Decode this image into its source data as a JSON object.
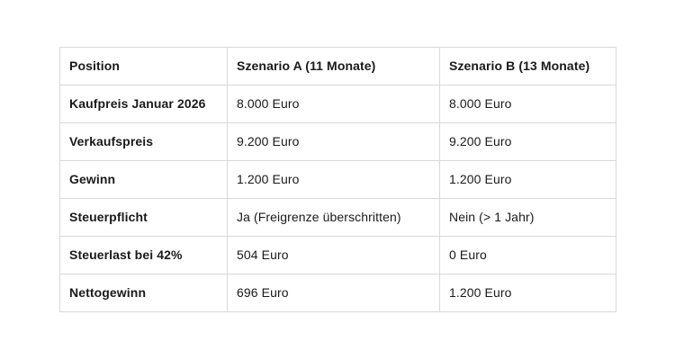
{
  "colors": {
    "background": "#ffffff",
    "border": "#d8d8d8",
    "text": "#1a1a1a"
  },
  "table": {
    "columns": [
      "Position",
      "Szenario A (11 Monate)",
      "Szenario B (13 Monate)"
    ],
    "rows": [
      [
        "Kaufpreis Januar 2026",
        "8.000 Euro",
        "8.000 Euro"
      ],
      [
        "Verkaufspreis",
        "9.200 Euro",
        "9.200 Euro"
      ],
      [
        "Gewinn",
        "1.200 Euro",
        "1.200 Euro"
      ],
      [
        "Steuerpflicht",
        "Ja (Freigrenze überschritten)",
        "Nein (> 1 Jahr)"
      ],
      [
        "Steuerlast bei 42%",
        "504 Euro",
        "0 Euro"
      ],
      [
        "Nettogewinn",
        "696 Euro",
        "1.200 Euro"
      ]
    ]
  }
}
